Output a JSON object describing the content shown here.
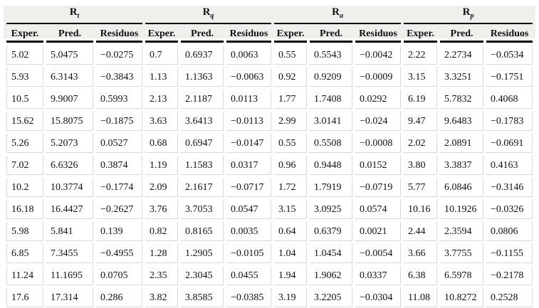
{
  "table": {
    "groups": [
      {
        "symbol": "R",
        "subscript": "t",
        "columns": [
          "Exper.",
          "Pred.",
          "Residuos"
        ]
      },
      {
        "symbol": "R",
        "subscript": "q",
        "columns": [
          "Exper.",
          "Pred.",
          "Residuos"
        ]
      },
      {
        "symbol": "R",
        "subscript": "a",
        "columns": [
          "Exper.",
          "Pred.",
          "Residuos"
        ]
      },
      {
        "symbol": "R",
        "subscript": "p",
        "columns": [
          "Exper.",
          "Pred.",
          "Residuos"
        ]
      }
    ],
    "rows": [
      [
        "5.02",
        "5.0475",
        "−0.0275",
        "0.7",
        "0.6937",
        "0.0063",
        "0.55",
        "0.5543",
        "−0.0042",
        "2.22",
        "2.2734",
        "−0.0534"
      ],
      [
        "5.93",
        "6.3143",
        "−0.3843",
        "1.13",
        "1.1363",
        "−0.0063",
        "0.92",
        "0.9209",
        "−0.0009",
        "3.15",
        "3.3251",
        "−0.1751"
      ],
      [
        "10.5",
        "9.9007",
        "0.5993",
        "2.13",
        "2.1187",
        "0.0113",
        "1.77",
        "1.7408",
        "0.0292",
        "6.19",
        "5.7832",
        "0.4068"
      ],
      [
        "15.62",
        "15.8075",
        "−0.1875",
        "3.63",
        "3.6413",
        "−0.0113",
        "2.99",
        "3.0141",
        "−0.024",
        "9.47",
        "9.6483",
        "−0.1783"
      ],
      [
        "5.26",
        "5.2073",
        "0.0527",
        "0.68",
        "0.6947",
        "−0.0147",
        "0.55",
        "0.5508",
        "−0.0008",
        "2.02",
        "2.0891",
        "−0.0691"
      ],
      [
        "7.02",
        "6.6326",
        "0.3874",
        "1.19",
        "1.1583",
        "0.0317",
        "0.96",
        "0.9448",
        "0.0152",
        "3.80",
        "3.3837",
        "0.4163"
      ],
      [
        "10.2",
        "10.3774",
        "−0.1774",
        "2.09",
        "2.1617",
        "−0.0717",
        "1.72",
        "1.7919",
        "−0.0719",
        "5.77",
        "6.0846",
        "−0.3146"
      ],
      [
        "16.18",
        "16.4427",
        "−0.2627",
        "3.76",
        "3.7053",
        "0.0547",
        "3.15",
        "3.0925",
        "0.0574",
        "10.16",
        "10.1926",
        "−0.0326"
      ],
      [
        "5.98",
        "5.841",
        "0.139",
        "0.82",
        "0.8165",
        "0.0035",
        "0.64",
        "0.6379",
        "0.0021",
        "2.44",
        "2.3594",
        "0.0806"
      ],
      [
        "6.85",
        "7.3455",
        "−0.4955",
        "1.28",
        "1.2905",
        "−0.0105",
        "1.04",
        "1.0454",
        "−0.0054",
        "3.66",
        "3.7755",
        "−0.1155"
      ],
      [
        "11.24",
        "11.1695",
        "0.0705",
        "2.35",
        "2.3045",
        "0.0455",
        "1.94",
        "1.9062",
        "0.0337",
        "6.38",
        "6.5978",
        "−0.2178"
      ],
      [
        "17.6",
        "17.314",
        "0.286",
        "3.82",
        "3.8585",
        "−0.0385",
        "3.19",
        "3.2205",
        "−0.0304",
        "11.08",
        "10.8272",
        "0.2528"
      ]
    ],
    "colors": {
      "header_band": "#efefec",
      "grid_line": "#d9d9d6",
      "header_rule": "#000000",
      "text": "#111111"
    }
  }
}
